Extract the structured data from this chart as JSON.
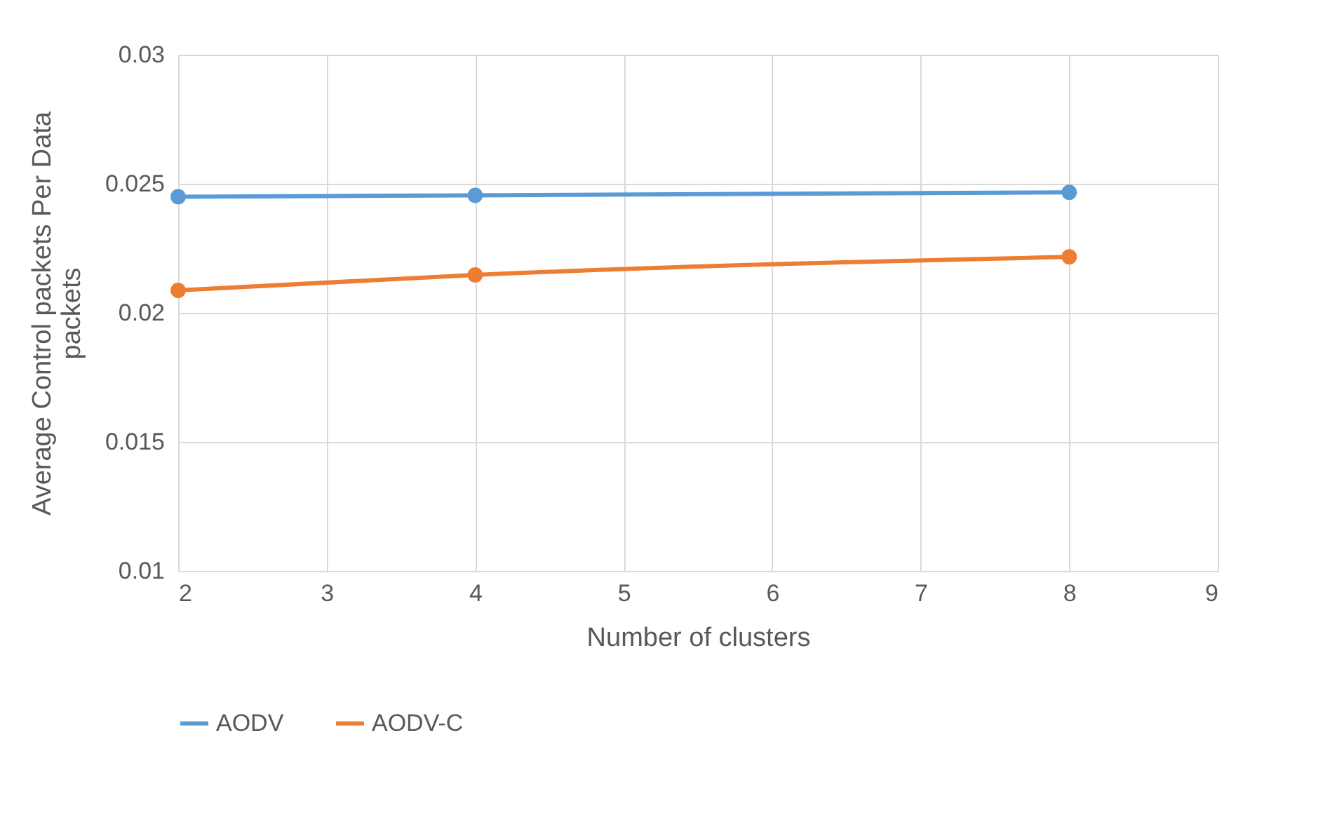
{
  "chart_data": {
    "type": "line",
    "xlabel": "Number of clusters",
    "ylabel": "Average Control packets Per Data packets",
    "xlim": [
      2,
      9
    ],
    "xticks": [
      2,
      3,
      4,
      5,
      6,
      7,
      8,
      9
    ],
    "ylim": [
      0.01,
      0.03
    ],
    "yticks": [
      0.01,
      0.015,
      0.02,
      0.025,
      0.03
    ],
    "grid": true,
    "legend": "bottom",
    "marker": "circle",
    "line_style": "solid",
    "series": [
      {
        "name": "AODV",
        "color": "#5b9bd5",
        "x": [
          2,
          4,
          8
        ],
        "values": [
          0.0245,
          0.02455,
          0.02467
        ]
      },
      {
        "name": "AODV-C",
        "color": "#ed7d31",
        "x": [
          2,
          4,
          8
        ],
        "values": [
          0.02087,
          0.02147,
          0.02217
        ]
      }
    ]
  }
}
